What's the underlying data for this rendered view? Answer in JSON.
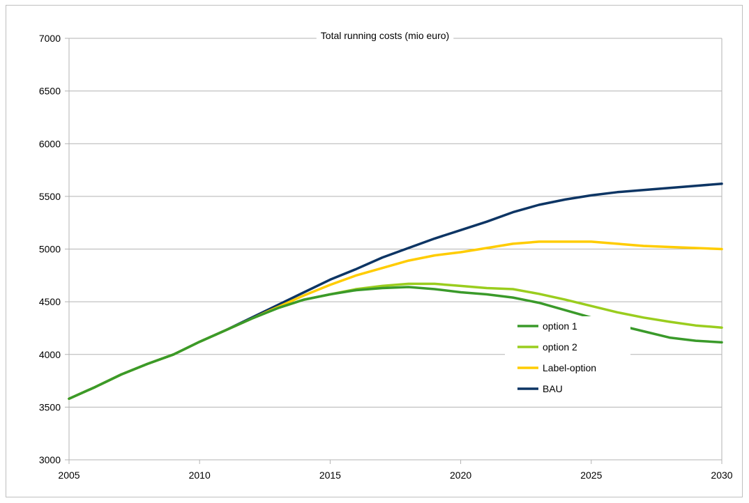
{
  "chart_data": {
    "type": "line",
    "title": "Total running costs (mio euro)",
    "xlabel": "",
    "ylabel": "",
    "xlim": [
      2005,
      2030
    ],
    "ylim": [
      3000,
      7000
    ],
    "x_ticks": [
      2005,
      2010,
      2015,
      2020,
      2025,
      2030
    ],
    "y_ticks": [
      3000,
      3500,
      4000,
      4500,
      5000,
      5500,
      6000,
      6500,
      7000
    ],
    "grid": "horizontal",
    "legend_position": "right-middle",
    "x": [
      2005,
      2006,
      2007,
      2008,
      2009,
      2010,
      2011,
      2012,
      2013,
      2014,
      2015,
      2016,
      2017,
      2018,
      2019,
      2020,
      2021,
      2022,
      2023,
      2024,
      2025,
      2026,
      2027,
      2028,
      2029,
      2030
    ],
    "series": [
      {
        "name": "option 1",
        "color": "#3a9a2a",
        "values": [
          3580,
          3690,
          3810,
          3910,
          4000,
          4120,
          4230,
          4340,
          4440,
          4520,
          4570,
          4610,
          4630,
          4640,
          4620,
          4590,
          4570,
          4540,
          4490,
          4420,
          4350,
          4280,
          4220,
          4160,
          4130,
          4115
        ]
      },
      {
        "name": "option 2",
        "color": "#9acd1e",
        "values": [
          3580,
          3690,
          3810,
          3910,
          4000,
          4120,
          4230,
          4340,
          4440,
          4520,
          4570,
          4620,
          4650,
          4670,
          4670,
          4650,
          4630,
          4620,
          4575,
          4520,
          4460,
          4400,
          4350,
          4310,
          4275,
          4255
        ]
      },
      {
        "name": "Label-option",
        "color": "#ffcc00",
        "values": [
          3580,
          3690,
          3810,
          3910,
          4000,
          4120,
          4230,
          4340,
          4450,
          4560,
          4660,
          4750,
          4820,
          4890,
          4940,
          4970,
          5010,
          5050,
          5070,
          5070,
          5070,
          5050,
          5030,
          5020,
          5010,
          5000
        ]
      },
      {
        "name": "BAU",
        "color": "#0d3564",
        "values": [
          3580,
          3690,
          3810,
          3910,
          4000,
          4120,
          4230,
          4350,
          4470,
          4590,
          4710,
          4810,
          4920,
          5010,
          5100,
          5180,
          5260,
          5350,
          5420,
          5470,
          5510,
          5540,
          5560,
          5580,
          5600,
          5620
        ]
      }
    ]
  }
}
